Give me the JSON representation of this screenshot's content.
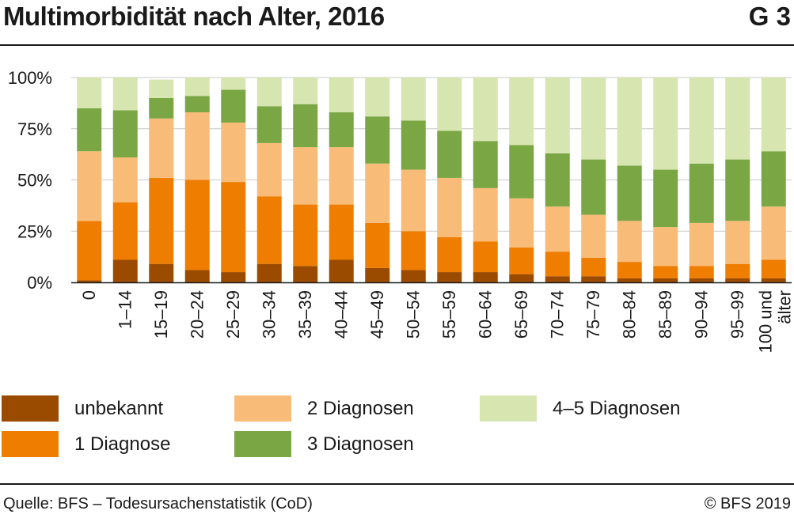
{
  "header": {
    "title": "Multimorbidität nach Alter, 2016",
    "code": "G 3"
  },
  "footer": {
    "source": "Quelle: BFS – Todesursachenstatistik (CoD)",
    "copyright": "© BFS 2019"
  },
  "colors": {
    "unbekannt": "#9a4b00",
    "1 Diagnose": "#ef7d00",
    "2 Diagnosen": "#f9bc78",
    "3 Diagnosen": "#7aa644",
    "4–5 Diagnosen": "#d7e6b1",
    "grid": "#c8c8c8"
  },
  "chart_data": {
    "type": "bar",
    "stacked": true,
    "categories": [
      "0",
      "1–14",
      "15–19",
      "20–24",
      "25–29",
      "30–34",
      "35–39",
      "40–44",
      "45–49",
      "50–54",
      "55–59",
      "60–64",
      "65–69",
      "70–74",
      "75–79",
      "80–84",
      "85–89",
      "90–94",
      "95–99",
      "100 und älter"
    ],
    "series": [
      {
        "name": "unbekannt",
        "values": [
          1,
          11,
          9,
          6,
          5,
          9,
          8,
          11,
          7,
          6,
          5,
          5,
          4,
          3,
          3,
          2,
          2,
          2,
          2,
          2
        ]
      },
      {
        "name": "1 Diagnose",
        "values": [
          29,
          28,
          42,
          44,
          44,
          33,
          30,
          27,
          22,
          19,
          17,
          15,
          13,
          12,
          9,
          8,
          6,
          6,
          7,
          9
        ]
      },
      {
        "name": "2 Diagnosen",
        "values": [
          34,
          22,
          29,
          33,
          29,
          26,
          28,
          28,
          29,
          30,
          29,
          26,
          24,
          22,
          21,
          20,
          19,
          21,
          21,
          26
        ]
      },
      {
        "name": "3 Diagnosen",
        "values": [
          21,
          23,
          10,
          8,
          16,
          18,
          21,
          17,
          23,
          24,
          23,
          23,
          26,
          26,
          27,
          27,
          28,
          29,
          30,
          27
        ]
      },
      {
        "name": "4–5 Diagnosen",
        "values": [
          15,
          16,
          9,
          9,
          6,
          14,
          13,
          17,
          19,
          21,
          26,
          31,
          33,
          37,
          40,
          43,
          45,
          42,
          40,
          36
        ]
      }
    ],
    "xlabel": "",
    "ylabel": "",
    "ylim": [
      0,
      100
    ],
    "yticks": [
      "0%",
      "25%",
      "50%",
      "75%",
      "100%"
    ],
    "grid": true,
    "legend": "bottom"
  }
}
